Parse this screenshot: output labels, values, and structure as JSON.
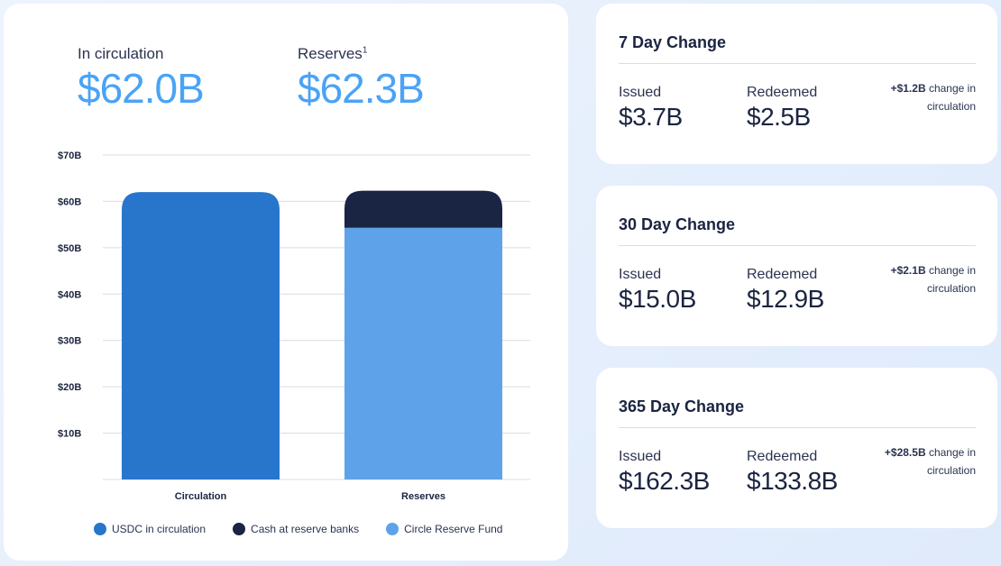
{
  "summary": {
    "circulation_label": "In circulation",
    "circulation_value": "$62.0B",
    "reserves_label": "Reserves",
    "reserves_sup": "1",
    "reserves_value": "$62.3B"
  },
  "chart_data": {
    "type": "bar",
    "stacked": true,
    "categories": [
      "Circulation",
      "Reserves"
    ],
    "series": [
      {
        "name": "USDC in circulation",
        "values": [
          62.0,
          0
        ],
        "color": "#2776cc"
      },
      {
        "name": "Circle Reserve Fund",
        "values": [
          0,
          54.3
        ],
        "color": "#5ea3e9"
      },
      {
        "name": "Cash at reserve banks",
        "values": [
          0,
          8.0
        ],
        "color": "#1a2443"
      }
    ],
    "ylim": [
      0,
      70
    ],
    "y_ticks": [
      10,
      20,
      30,
      40,
      50,
      60,
      70
    ],
    "y_tick_labels": [
      "$10B",
      "$20B",
      "$30B",
      "$40B",
      "$50B",
      "$60B",
      "$70B"
    ],
    "grid": true,
    "legend_placement": "bottom",
    "legend": [
      {
        "label": "USDC in circulation",
        "color": "#2776cc"
      },
      {
        "label": "Cash at reserve banks",
        "color": "#1a2443"
      },
      {
        "label": "Circle Reserve Fund",
        "color": "#5ea3e9"
      }
    ]
  },
  "changes": [
    {
      "title": "7 Day Change",
      "issued_label": "Issued",
      "issued": "$3.7B",
      "redeemed_label": "Redeemed",
      "redeemed": "$2.5B",
      "net": "+$1.2B",
      "net_text": " change in circulation"
    },
    {
      "title": "30 Day Change",
      "issued_label": "Issued",
      "issued": "$15.0B",
      "redeemed_label": "Redeemed",
      "redeemed": "$12.9B",
      "net": "+$2.1B",
      "net_text": " change in circulation"
    },
    {
      "title": "365 Day Change",
      "issued_label": "Issued",
      "issued": "$162.3B",
      "redeemed_label": "Redeemed",
      "redeemed": "$133.8B",
      "net": "+$28.5B",
      "net_text": " change in circulation"
    }
  ]
}
